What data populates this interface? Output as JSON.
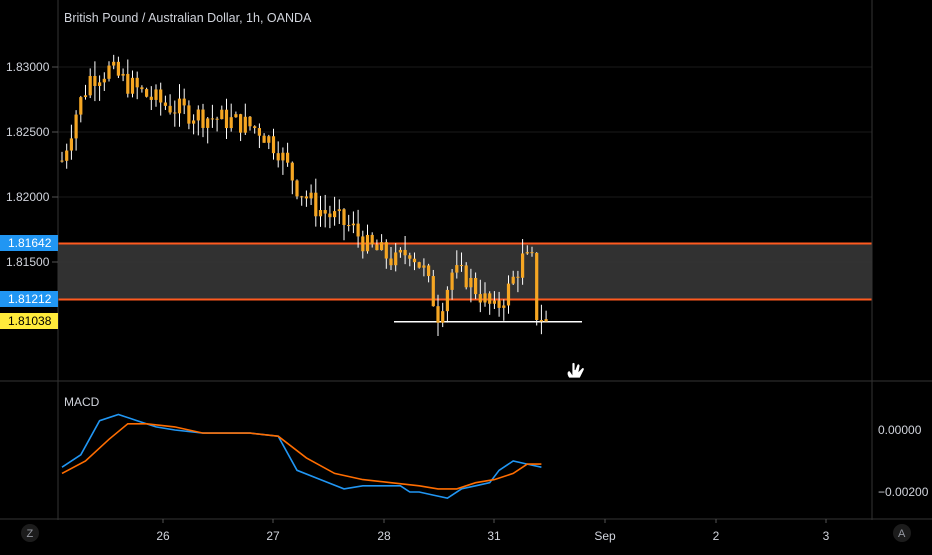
{
  "colors": {
    "background": "#000000",
    "grid": "#1a1a1a",
    "axis_text": "#d1d4dc",
    "candle": "#f5a623",
    "wick": "#ffffff",
    "zone_line": "#ff5a1f",
    "zone_fill": "#3a3a3a",
    "zone_label_bg": "#2196f3",
    "price_label_bg": "#ffeb3b",
    "support_line": "#ffffff",
    "macd_line": "#2196f3",
    "signal_line": "#ff6d00"
  },
  "chart_data": [
    {
      "type": "candlestick",
      "title": "British Pound / Australian Dollar, 1h, OANDA",
      "ylim": [
        1.8064,
        1.8348
      ],
      "y_ticks": [
        "1.83000",
        "1.82500",
        "1.82000",
        "1.81500"
      ],
      "x_ticks": [
        "26",
        "27",
        "28",
        "31",
        "Sep",
        "2",
        "3"
      ],
      "zone": {
        "upper": 1.81642,
        "lower": 1.81212
      },
      "zone_labels": [
        "1.81642",
        "1.81212"
      ],
      "last_price_label": "1.81038",
      "support_level": 1.8104,
      "close_path": [
        [
          0,
          1.8228
        ],
        [
          3,
          1.8265
        ],
        [
          6,
          1.8292
        ],
        [
          10,
          1.8298
        ],
        [
          14,
          1.8287
        ],
        [
          18,
          1.8278
        ],
        [
          22,
          1.8271
        ],
        [
          26,
          1.8266
        ],
        [
          30,
          1.8262
        ],
        [
          34,
          1.826
        ],
        [
          38,
          1.8257
        ],
        [
          42,
          1.8252
        ],
        [
          46,
          1.8237
        ],
        [
          50,
          1.8208
        ],
        [
          54,
          1.8192
        ],
        [
          58,
          1.8184
        ],
        [
          62,
          1.8175
        ],
        [
          65,
          1.8162
        ],
        [
          68,
          1.8157
        ],
        [
          71,
          1.815
        ],
        [
          74,
          1.816
        ],
        [
          77,
          1.8143
        ],
        [
          80,
          1.811
        ],
        [
          83,
          1.8142
        ],
        [
          86,
          1.8138
        ],
        [
          89,
          1.8125
        ],
        [
          92,
          1.8112
        ],
        [
          95,
          1.8129
        ],
        [
          98,
          1.8152
        ],
        [
          100,
          1.815
        ],
        [
          101,
          1.811
        ],
        [
          103,
          1.8104
        ]
      ]
    },
    {
      "type": "line",
      "title": "MACD",
      "y_ticks": [
        "0.00000",
        "−0.00200"
      ],
      "ylim": [
        -0.0028,
        0.0012
      ],
      "series": [
        {
          "key": "macd",
          "values": [
            [
              0,
              -0.0012
            ],
            [
              4,
              -0.0008
            ],
            [
              8,
              0.0003
            ],
            [
              12,
              0.0005
            ],
            [
              16,
              0.0003
            ],
            [
              20,
              0.0001
            ],
            [
              24,
              0.0
            ],
            [
              30,
              -0.0001
            ],
            [
              40,
              -0.0001
            ],
            [
              46,
              -0.0002
            ],
            [
              50,
              -0.0013
            ],
            [
              55,
              -0.0016
            ],
            [
              60,
              -0.0019
            ],
            [
              64,
              -0.0018
            ],
            [
              68,
              -0.0018
            ],
            [
              72,
              -0.0018
            ],
            [
              74,
              -0.002
            ],
            [
              76,
              -0.002
            ],
            [
              79,
              -0.0021
            ],
            [
              82,
              -0.0022
            ],
            [
              85,
              -0.0019
            ],
            [
              88,
              -0.0018
            ],
            [
              91,
              -0.0017
            ],
            [
              93,
              -0.0013
            ],
            [
              96,
              -0.001
            ],
            [
              99,
              -0.0011
            ],
            [
              102,
              -0.0012
            ]
          ]
        },
        {
          "key": "signal",
          "values": [
            [
              0,
              -0.0014
            ],
            [
              5,
              -0.001
            ],
            [
              10,
              -0.0003
            ],
            [
              14,
              0.0002
            ],
            [
              18,
              0.0002
            ],
            [
              24,
              0.0001
            ],
            [
              30,
              -0.0001
            ],
            [
              40,
              -0.0001
            ],
            [
              46,
              -0.0002
            ],
            [
              52,
              -0.0009
            ],
            [
              58,
              -0.0014
            ],
            [
              64,
              -0.0016
            ],
            [
              70,
              -0.0017
            ],
            [
              76,
              -0.0018
            ],
            [
              80,
              -0.0019
            ],
            [
              84,
              -0.0019
            ],
            [
              88,
              -0.0017
            ],
            [
              92,
              -0.0016
            ],
            [
              96,
              -0.0014
            ],
            [
              99,
              -0.0011
            ],
            [
              102,
              -0.0011
            ]
          ]
        }
      ]
    }
  ],
  "bottom_bar": {
    "left_button": "Z",
    "right_button": "A"
  }
}
